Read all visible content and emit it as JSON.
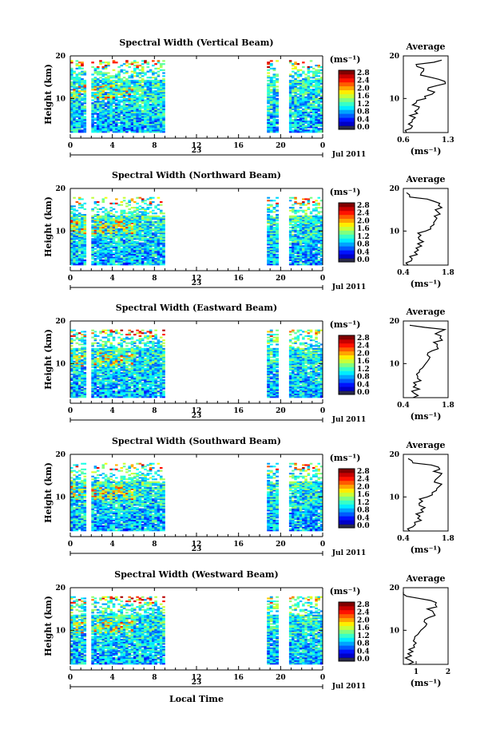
{
  "figure": {
    "date_label": "Jul 2011",
    "day_label": "23",
    "xlabel": "Local Time",
    "ylabel": "Height (km)",
    "colorbar_unit": "(ms⁻¹)",
    "average_title": "Average",
    "average_xlabel": "(ms⁻¹)"
  },
  "chart_data": [
    {
      "type": "heatmap",
      "title": "Spectral Width (Vertical Beam)",
      "xlim": [
        0,
        24
      ],
      "ylim": [
        2,
        20
      ],
      "x_ticks": [
        "0",
        "4",
        "8",
        "12",
        "16",
        "20",
        "0"
      ],
      "y_ticks": [
        "10",
        "20"
      ],
      "data_time_ranges": [
        [
          0,
          1.5
        ],
        [
          2,
          6
        ],
        [
          6,
          9
        ],
        [
          18.7,
          19.8
        ],
        [
          20.8,
          24
        ]
      ],
      "data_top_km": 19,
      "colorbar_ticks": [
        "0.0",
        "0.4",
        "0.8",
        "1.2",
        "1.6",
        "2.0",
        "2.4",
        "2.8"
      ],
      "colorbar_range": [
        0,
        3.0
      ],
      "average_profile": {
        "title": "Average",
        "xlim": [
          0.6,
          1.3
        ],
        "x_ticks": [
          "0.6",
          "1.3"
        ],
        "y_ticks": [
          "10",
          "20"
        ],
        "height_km": [
          2,
          3,
          4,
          5,
          6,
          7,
          8,
          9,
          10,
          11,
          12,
          13,
          14,
          15,
          16,
          17,
          18,
          19
        ],
        "width_ms": [
          0.65,
          0.72,
          0.68,
          0.74,
          0.7,
          0.78,
          0.85,
          0.8,
          0.95,
          1.05,
          0.98,
          1.12,
          1.25,
          1.02,
          0.88,
          0.92,
          0.8,
          1.2
        ]
      }
    },
    {
      "type": "heatmap",
      "title": "Spectral Width (Northward Beam)",
      "xlim": [
        0,
        24
      ],
      "ylim": [
        2,
        20
      ],
      "x_ticks": [
        "0",
        "4",
        "8",
        "12",
        "16",
        "20",
        "0"
      ],
      "y_ticks": [
        "10",
        "20"
      ],
      "data_time_ranges": [
        [
          0,
          1.5
        ],
        [
          2,
          6
        ],
        [
          6,
          9
        ],
        [
          18.7,
          19.8
        ],
        [
          20.8,
          24
        ]
      ],
      "data_top_km": 18,
      "colorbar_ticks": [
        "0.0",
        "0.4",
        "0.8",
        "1.2",
        "1.6",
        "2.0",
        "2.4",
        "2.8"
      ],
      "colorbar_range": [
        0,
        3.0
      ],
      "average_profile": {
        "title": "Average",
        "xlim": [
          0.4,
          1.8
        ],
        "x_ticks": [
          "0.4",
          "1.8"
        ],
        "y_ticks": [
          "10",
          "20"
        ],
        "height_km": [
          2,
          3,
          4,
          5,
          6,
          7,
          8,
          9,
          10,
          11,
          12,
          13,
          14,
          15,
          16,
          17,
          18,
          19
        ],
        "width_ms": [
          0.55,
          0.65,
          0.6,
          0.75,
          0.8,
          0.85,
          0.9,
          0.95,
          1.1,
          1.25,
          1.35,
          1.45,
          1.55,
          1.4,
          1.5,
          1.35,
          0.6,
          0.5
        ]
      }
    },
    {
      "type": "heatmap",
      "title": "Spectral Width (Eastward Beam)",
      "xlim": [
        0,
        24
      ],
      "ylim": [
        2,
        20
      ],
      "x_ticks": [
        "0",
        "4",
        "8",
        "12",
        "16",
        "20",
        "0"
      ],
      "y_ticks": [
        "10",
        "20"
      ],
      "data_time_ranges": [
        [
          0,
          1.5
        ],
        [
          2,
          6
        ],
        [
          6,
          9
        ],
        [
          18.7,
          19.8
        ],
        [
          20.8,
          24
        ]
      ],
      "data_top_km": 18,
      "colorbar_ticks": [
        "0.0",
        "0.4",
        "0.8",
        "1.2",
        "1.6",
        "2.0",
        "2.4",
        "2.8"
      ],
      "colorbar_range": [
        0,
        3.0
      ],
      "average_profile": {
        "title": "Average",
        "xlim": [
          0.4,
          1.8
        ],
        "x_ticks": [
          "0.4",
          "1.8"
        ],
        "y_ticks": [
          "10",
          "20"
        ],
        "height_km": [
          2,
          3,
          4,
          5,
          6,
          7,
          8,
          9,
          10,
          11,
          12,
          13,
          14,
          15,
          16,
          17,
          18,
          19
        ],
        "width_ms": [
          0.7,
          0.75,
          0.9,
          0.8,
          0.95,
          0.85,
          0.9,
          1.0,
          1.1,
          1.2,
          1.15,
          1.3,
          1.45,
          1.35,
          1.55,
          1.4,
          1.7,
          0.6
        ]
      }
    },
    {
      "type": "heatmap",
      "title": "Spectral Width (Southward Beam)",
      "xlim": [
        0,
        24
      ],
      "ylim": [
        2,
        20
      ],
      "x_ticks": [
        "0",
        "4",
        "8",
        "12",
        "16",
        "20",
        "0"
      ],
      "y_ticks": [
        "10",
        "20"
      ],
      "data_time_ranges": [
        [
          0,
          1.5
        ],
        [
          2,
          6
        ],
        [
          6,
          9
        ],
        [
          18.7,
          19.8
        ],
        [
          20.8,
          24
        ]
      ],
      "data_top_km": 18,
      "colorbar_ticks": [
        "0.0",
        "0.4",
        "0.8",
        "1.2",
        "1.6",
        "2.0",
        "2.4",
        "2.8"
      ],
      "colorbar_range": [
        0,
        3.0
      ],
      "average_profile": {
        "title": "Average",
        "xlim": [
          0.4,
          1.8
        ],
        "x_ticks": [
          "0.4",
          "1.8"
        ],
        "y_ticks": [
          "10",
          "20"
        ],
        "height_km": [
          2,
          3,
          4,
          5,
          6,
          7,
          8,
          9,
          10,
          11,
          12,
          13,
          14,
          15,
          16,
          17,
          18,
          19
        ],
        "width_ms": [
          0.6,
          0.7,
          0.75,
          0.85,
          0.8,
          0.95,
          0.9,
          1.0,
          1.15,
          1.3,
          1.45,
          1.6,
          1.4,
          1.55,
          1.35,
          1.5,
          0.7,
          0.55
        ]
      }
    },
    {
      "type": "heatmap",
      "title": "Spectral Width (Westward Beam)",
      "xlim": [
        0,
        24
      ],
      "ylim": [
        2,
        20
      ],
      "x_ticks": [
        "0",
        "4",
        "8",
        "12",
        "16",
        "20",
        "0"
      ],
      "y_ticks": [
        "10",
        "20"
      ],
      "data_time_ranges": [
        [
          0,
          1.5
        ],
        [
          2,
          6
        ],
        [
          6,
          9
        ],
        [
          18.7,
          19.8
        ],
        [
          20.8,
          24
        ]
      ],
      "data_top_km": 18,
      "colorbar_ticks": [
        "0.0",
        "0.4",
        "0.8",
        "1.2",
        "1.6",
        "2.0",
        "2.4",
        "2.8"
      ],
      "colorbar_range": [
        0,
        3.0
      ],
      "average_profile": {
        "title": "Average",
        "xlim": [
          0.6,
          2.0
        ],
        "x_ticks": [
          "1",
          "2"
        ],
        "y_ticks": [
          "10",
          "20"
        ],
        "height_km": [
          2,
          3,
          4,
          5,
          6,
          7,
          8,
          9,
          10,
          11,
          12,
          13,
          14,
          15,
          16,
          17,
          18,
          19
        ],
        "width_ms": [
          0.75,
          0.8,
          0.85,
          0.9,
          0.95,
          1.0,
          0.95,
          1.05,
          1.15,
          1.3,
          1.25,
          1.4,
          1.55,
          1.35,
          1.6,
          1.45,
          0.7,
          0.6
        ]
      }
    }
  ]
}
